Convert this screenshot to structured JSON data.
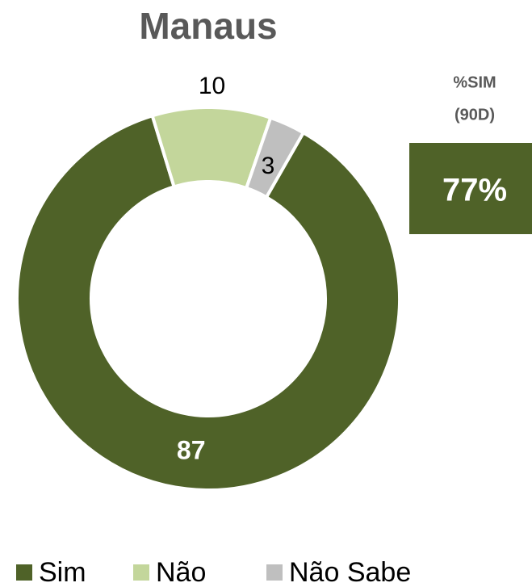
{
  "chart_data": {
    "type": "donut",
    "title": "Manaus",
    "categories": [
      "Sim",
      "Não",
      "Não Sabe"
    ],
    "values": [
      87,
      10,
      3
    ],
    "colors": [
      "#4f6228",
      "#c3d69b",
      "#bfbfbf"
    ],
    "legend": "bottom",
    "callout": {
      "lines": [
        "%SIM",
        "(90D)"
      ],
      "value": 77,
      "value_label": "77%",
      "color": "#4f6228"
    }
  }
}
